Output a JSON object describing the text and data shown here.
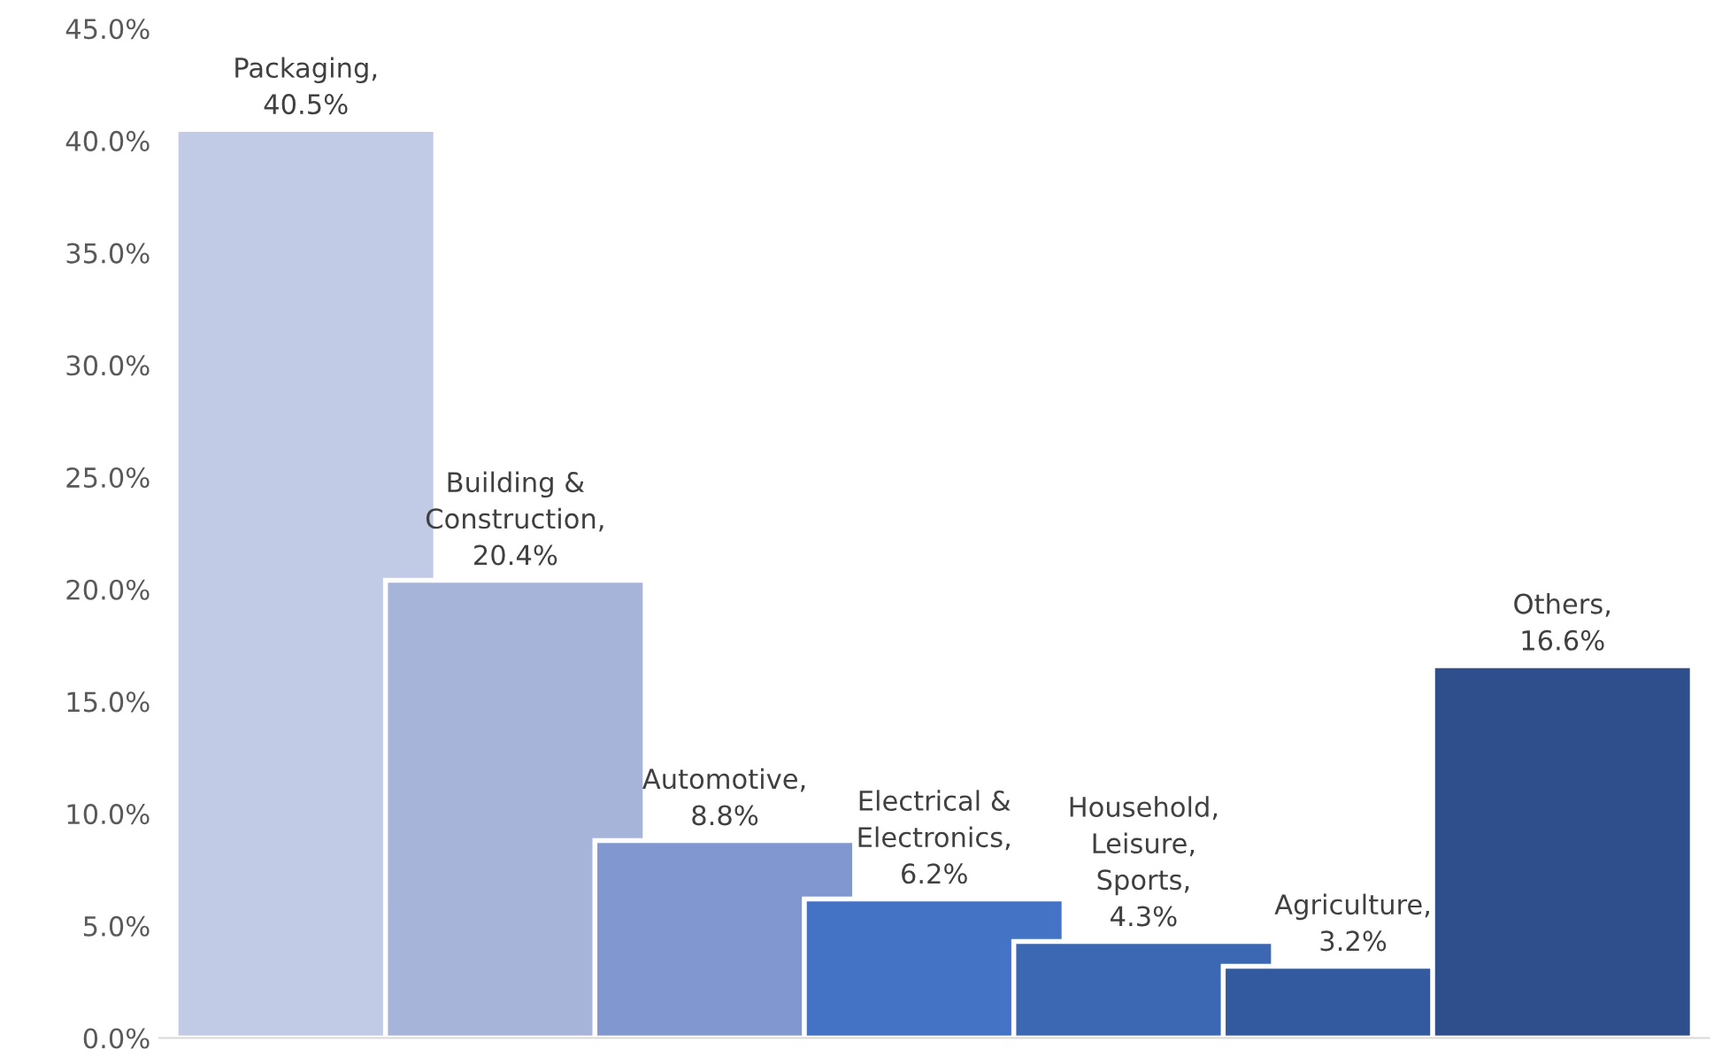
{
  "chart_data": {
    "type": "bar",
    "categories": [
      null,
      null,
      null,
      null,
      null,
      null,
      null
    ],
    "values": [
      40.5,
      20.4,
      8.8,
      6.2,
      4.3,
      3.2,
      16.6
    ],
    "colors": [
      "#c2cbe5",
      "#a7b4da",
      "#8098cf",
      "#4472c4",
      "#3c67b2",
      "#335a9e",
      "#2e4f8c"
    ],
    "value_labels": [
      "Packaging,\n40.5%",
      "Building &\nConstruction,\n20.4%",
      "Automotive,\n8.8%",
      "Electrical &\nElectronics,\n6.2%",
      "Household,\nLeisure,\nSports,\n4.3%",
      "Agriculture,\n3.2%",
      "Others,\n16.6%"
    ],
    "ylim": [
      0,
      45
    ],
    "yticks": [
      {
        "value": 0,
        "label": "0.0%"
      },
      {
        "value": 5,
        "label": "5.0%"
      },
      {
        "value": 10,
        "label": "10.0%"
      },
      {
        "value": 15,
        "label": "15.0%"
      },
      {
        "value": 20,
        "label": "20.0%"
      },
      {
        "value": 25,
        "label": "25.0%"
      },
      {
        "value": 30,
        "label": "30.0%"
      },
      {
        "value": 35,
        "label": "35.0%"
      },
      {
        "value": 40,
        "label": "40.0%"
      },
      {
        "value": 45,
        "label": "45.0%"
      }
    ],
    "grid": false,
    "legend": false
  }
}
